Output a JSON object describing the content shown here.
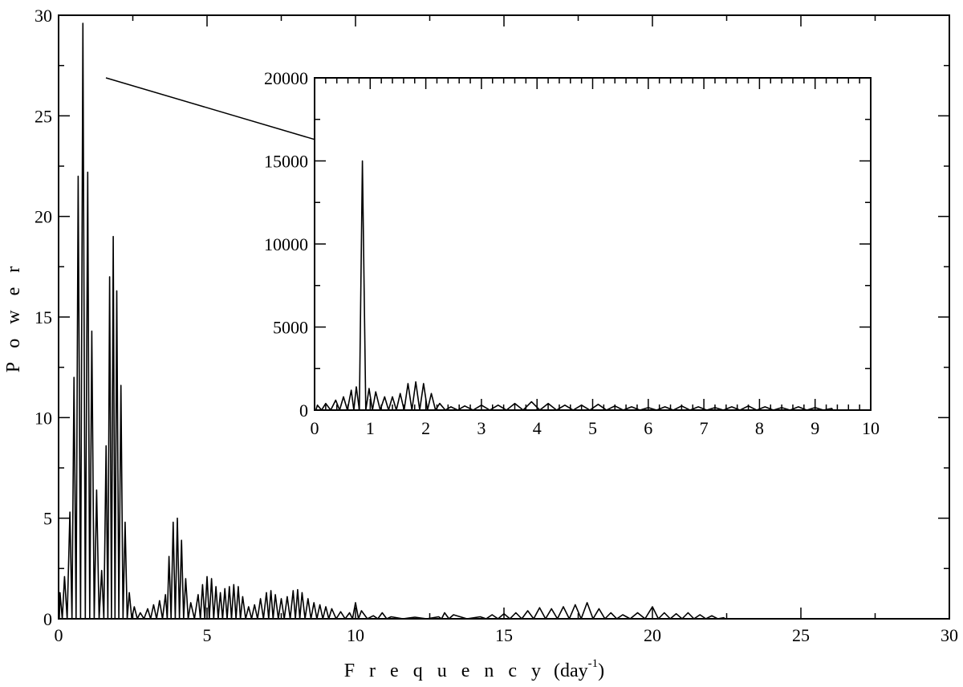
{
  "chart_data": [
    {
      "id": "main",
      "type": "line",
      "xlabel": "F r e q u e n c y",
      "xlabel_unit_prefix": "(day",
      "xlabel_unit_sup": "-1",
      "xlabel_unit_suffix": ")",
      "ylabel": "P o w e r",
      "xlim": [
        0,
        30
      ],
      "ylim": [
        0,
        30
      ],
      "xticks": [
        0,
        5,
        10,
        15,
        20,
        25,
        30
      ],
      "yticks": [
        0,
        5,
        10,
        15,
        20,
        25,
        30
      ],
      "grid": false,
      "peaks": [
        [
          0.05,
          1.3
        ],
        [
          0.2,
          2.1
        ],
        [
          0.38,
          5.3
        ],
        [
          0.52,
          12.0
        ],
        [
          0.66,
          22.0
        ],
        [
          0.82,
          29.6
        ],
        [
          0.98,
          22.2
        ],
        [
          1.12,
          14.3
        ],
        [
          1.28,
          6.4
        ],
        [
          1.45,
          2.4
        ],
        [
          1.6,
          8.6
        ],
        [
          1.72,
          17.0
        ],
        [
          1.84,
          19.0
        ],
        [
          1.96,
          16.3
        ],
        [
          2.1,
          11.6
        ],
        [
          2.24,
          4.8
        ],
        [
          2.38,
          1.3
        ],
        [
          2.55,
          0.6
        ],
        [
          2.75,
          0.3
        ],
        [
          3.0,
          0.5
        ],
        [
          3.2,
          0.7
        ],
        [
          3.4,
          0.9
        ],
        [
          3.6,
          1.2
        ],
        [
          3.72,
          3.1
        ],
        [
          3.86,
          4.8
        ],
        [
          4.0,
          5.0
        ],
        [
          4.14,
          3.9
        ],
        [
          4.28,
          2.0
        ],
        [
          4.45,
          0.8
        ],
        [
          4.7,
          1.2
        ],
        [
          4.85,
          1.7
        ],
        [
          5.0,
          2.1
        ],
        [
          5.15,
          2.0
        ],
        [
          5.3,
          1.6
        ],
        [
          5.45,
          1.3
        ],
        [
          5.6,
          1.5
        ],
        [
          5.75,
          1.6
        ],
        [
          5.9,
          1.7
        ],
        [
          6.05,
          1.6
        ],
        [
          6.2,
          1.1
        ],
        [
          6.4,
          0.6
        ],
        [
          6.6,
          0.7
        ],
        [
          6.8,
          1.0
        ],
        [
          7.0,
          1.3
        ],
        [
          7.15,
          1.4
        ],
        [
          7.3,
          1.2
        ],
        [
          7.5,
          1.0
        ],
        [
          7.7,
          1.1
        ],
        [
          7.9,
          1.4
        ],
        [
          8.05,
          1.45
        ],
        [
          8.2,
          1.3
        ],
        [
          8.4,
          1.0
        ],
        [
          8.6,
          0.8
        ],
        [
          8.8,
          0.7
        ],
        [
          9.0,
          0.6
        ],
        [
          9.2,
          0.5
        ],
        [
          9.5,
          0.35
        ],
        [
          9.8,
          0.3
        ],
        [
          10.0,
          0.8
        ],
        [
          10.2,
          0.4
        ],
        [
          10.6,
          0.15
        ],
        [
          10.9,
          0.3
        ],
        [
          11.2,
          0.1
        ],
        [
          12.0,
          0.08
        ],
        [
          12.8,
          0.1
        ],
        [
          13.0,
          0.3
        ],
        [
          13.3,
          0.2
        ],
        [
          14.2,
          0.1
        ],
        [
          14.6,
          0.2
        ],
        [
          15.0,
          0.25
        ],
        [
          15.4,
          0.3
        ],
        [
          15.8,
          0.4
        ],
        [
          16.2,
          0.55
        ],
        [
          16.6,
          0.5
        ],
        [
          17.0,
          0.6
        ],
        [
          17.4,
          0.7
        ],
        [
          17.8,
          0.8
        ],
        [
          18.2,
          0.5
        ],
        [
          18.6,
          0.3
        ],
        [
          19.0,
          0.2
        ],
        [
          19.5,
          0.3
        ],
        [
          20.0,
          0.6
        ],
        [
          20.4,
          0.3
        ],
        [
          20.8,
          0.25
        ],
        [
          21.2,
          0.3
        ],
        [
          21.6,
          0.2
        ],
        [
          22.0,
          0.15
        ],
        [
          22.4,
          0.05
        ]
      ]
    },
    {
      "id": "inset",
      "type": "line",
      "xlim": [
        0,
        10
      ],
      "ylim": [
        0,
        20000
      ],
      "xticks": [
        0,
        1,
        2,
        3,
        4,
        5,
        6,
        7,
        8,
        9,
        10
      ],
      "yticks": [
        0,
        5000,
        10000,
        15000,
        20000
      ],
      "grid": false,
      "peaks": [
        [
          0.05,
          300
        ],
        [
          0.2,
          400
        ],
        [
          0.38,
          600
        ],
        [
          0.52,
          800
        ],
        [
          0.66,
          1200
        ],
        [
          0.75,
          1400
        ],
        [
          0.86,
          15000
        ],
        [
          0.98,
          1300
        ],
        [
          1.1,
          1100
        ],
        [
          1.26,
          800
        ],
        [
          1.4,
          800
        ],
        [
          1.54,
          1000
        ],
        [
          1.68,
          1600
        ],
        [
          1.82,
          1700
        ],
        [
          1.96,
          1600
        ],
        [
          2.1,
          1000
        ],
        [
          2.25,
          400
        ],
        [
          2.45,
          200
        ],
        [
          2.7,
          250
        ],
        [
          3.0,
          300
        ],
        [
          3.3,
          300
        ],
        [
          3.6,
          400
        ],
        [
          3.9,
          500
        ],
        [
          4.2,
          400
        ],
        [
          4.5,
          300
        ],
        [
          4.8,
          300
        ],
        [
          5.1,
          350
        ],
        [
          5.4,
          250
        ],
        [
          5.7,
          200
        ],
        [
          6.0,
          150
        ],
        [
          6.3,
          200
        ],
        [
          6.6,
          250
        ],
        [
          6.9,
          200
        ],
        [
          7.2,
          150
        ],
        [
          7.5,
          200
        ],
        [
          7.8,
          250
        ],
        [
          8.1,
          200
        ],
        [
          8.4,
          150
        ],
        [
          8.7,
          200
        ],
        [
          9.0,
          150
        ],
        [
          9.3,
          100
        ]
      ]
    }
  ]
}
